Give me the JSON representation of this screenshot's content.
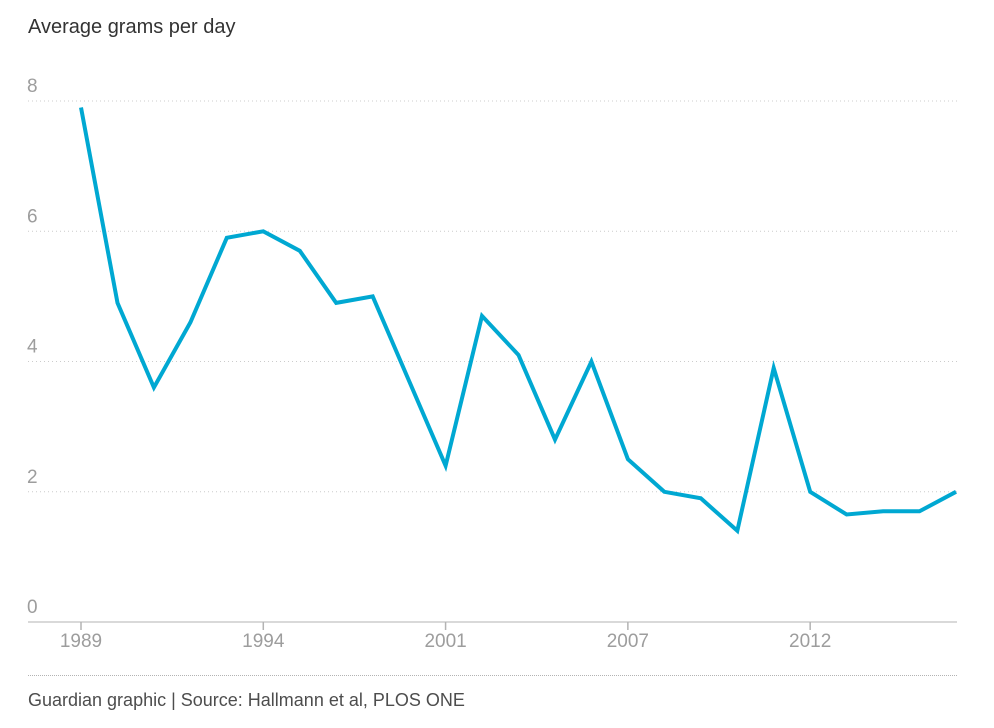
{
  "chart_data": {
    "type": "line",
    "title": "Average grams per day",
    "xlabel": "",
    "ylabel": "Average grams per day",
    "ylim": [
      0,
      8
    ],
    "y_ticks": [
      8,
      6,
      4,
      2,
      0
    ],
    "x_tick_labels": [
      "1989",
      "1994",
      "2001",
      "2007",
      "2012"
    ],
    "x_tick_indices": [
      0,
      5,
      10,
      15,
      20
    ],
    "grid": "dotted-horizontal",
    "legend": "none",
    "series": [
      {
        "name": "Average grams per day",
        "values": [
          7.9,
          4.9,
          3.6,
          4.6,
          5.9,
          6.0,
          5.7,
          4.9,
          5.0,
          3.7,
          2.4,
          4.7,
          4.1,
          2.8,
          4.0,
          2.5,
          2.0,
          1.9,
          1.4,
          3.9,
          2.0,
          1.65,
          1.7,
          1.7,
          2.0
        ]
      }
    ],
    "colors": {
      "line": "#00a8d2",
      "grid": "#cccccc",
      "axis": "#b3b3b3",
      "tick_label": "#9d9d9d",
      "title": "#333333",
      "source_text": "#4d4d4d"
    }
  },
  "footer": {
    "source": "Guardian graphic | Source: Hallmann et al, PLOS ONE"
  }
}
